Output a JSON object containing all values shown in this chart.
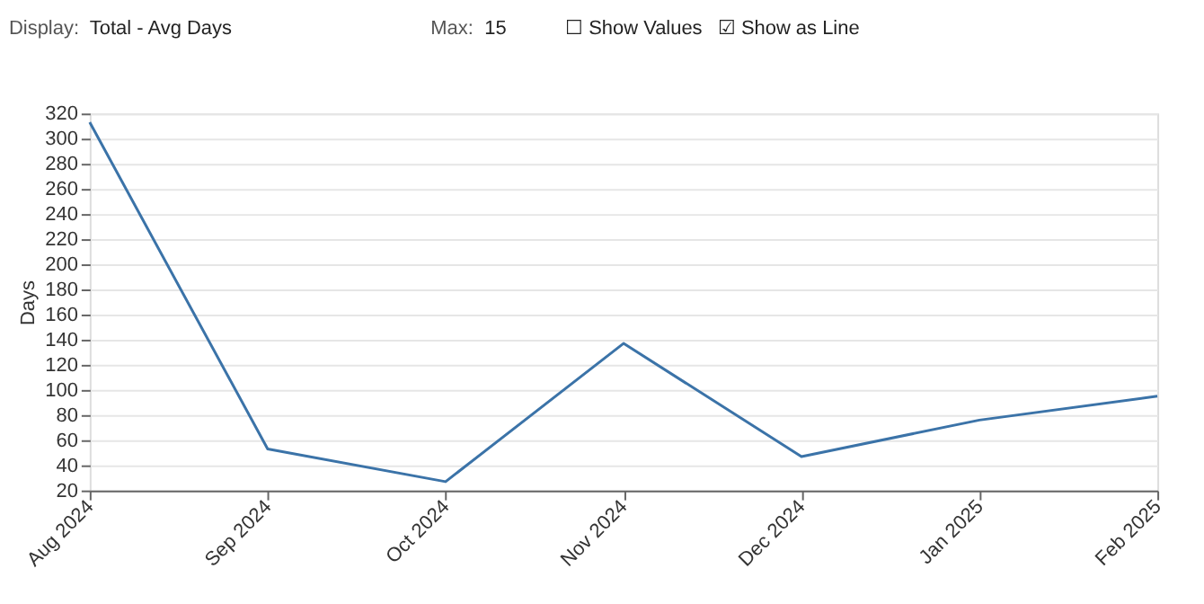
{
  "chart_data": {
    "type": "line",
    "ylabel": "Days",
    "categories": [
      "Aug 2024",
      "Sep 2024",
      "Oct 2024",
      "Nov 2024",
      "Dec 2024",
      "Jan 2025",
      "Feb 2025"
    ],
    "series": [
      {
        "color": "#3b73a8",
        "values": [
          313,
          53,
          27,
          137,
          47,
          76,
          95
        ]
      }
    ],
    "ylim": [
      20,
      320
    ],
    "yticks": [
      20,
      40,
      60,
      80,
      100,
      120,
      140,
      160,
      180,
      200,
      220,
      240,
      260,
      280,
      300,
      320
    ],
    "grid": "y",
    "marker": "none",
    "line_style": "solid",
    "legend": false,
    "annotations": [
      "Display:",
      "Total - Avg Days",
      "Max:",
      "15",
      "☐ Show Values",
      "☑ Show as Line"
    ]
  }
}
